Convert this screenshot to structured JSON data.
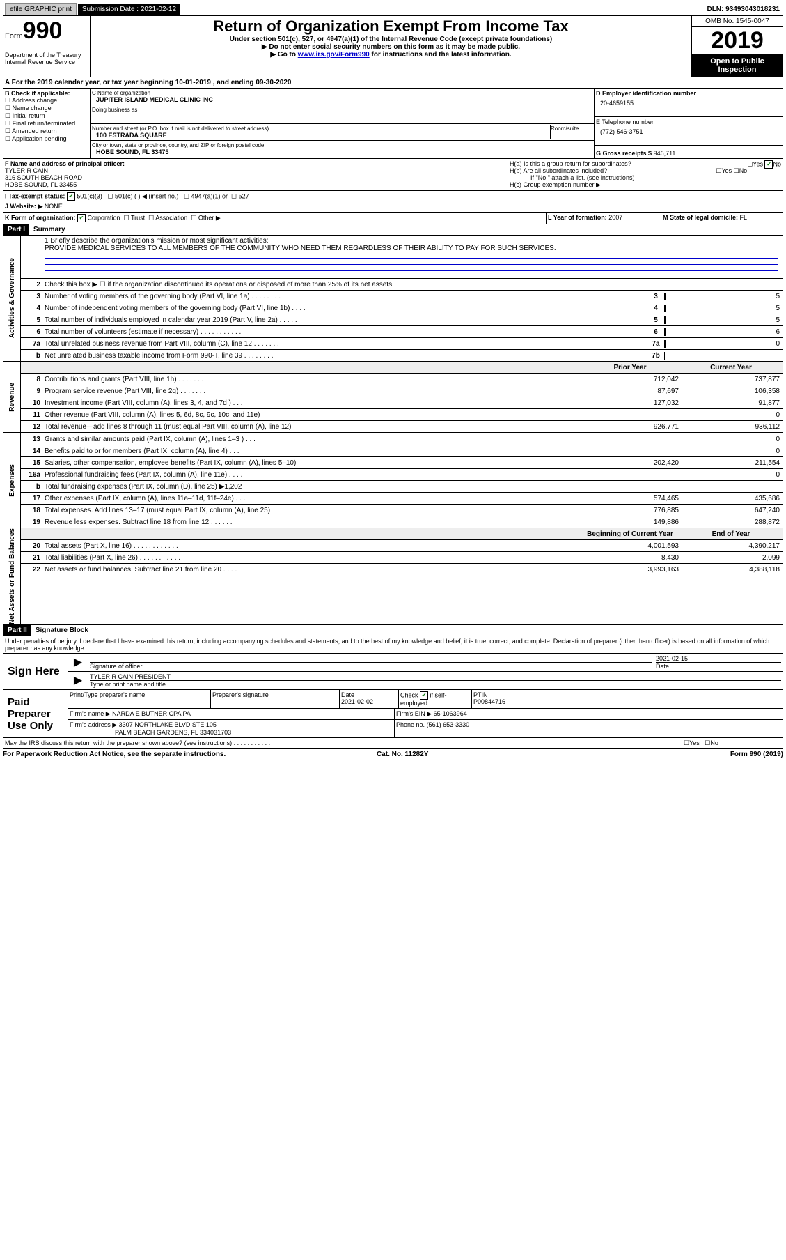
{
  "header": {
    "efile": "efile GRAPHIC print",
    "submission_label": "Submission Date : 2021-02-12",
    "dln": "DLN: 93493043018231"
  },
  "form_head": {
    "form_label": "Form",
    "form_number": "990",
    "title": "Return of Organization Exempt From Income Tax",
    "sub1": "Under section 501(c), 527, or 4947(a)(1) of the Internal Revenue Code (except private foundations)",
    "sub2": "▶ Do not enter social security numbers on this form as it may be made public.",
    "sub3_pre": "▶ Go to ",
    "sub3_link": "www.irs.gov/Form990",
    "sub3_post": " for instructions and the latest information.",
    "omb": "OMB No. 1545-0047",
    "year": "2019",
    "open": "Open to Public Inspection",
    "dept": "Department of the Treasury\nInternal Revenue Service"
  },
  "row_a": "A For the 2019 calendar year, or tax year beginning 10-01-2019    , and ending 09-30-2020",
  "box_b": {
    "label": "B Check if applicable:",
    "items": [
      "Address change",
      "Name change",
      "Initial return",
      "Final return/terminated",
      "Amended return",
      "Application pending"
    ]
  },
  "box_c": {
    "name_label": "C Name of organization",
    "name": "JUPITER ISLAND MEDICAL CLINIC INC",
    "dba_label": "Doing business as",
    "addr_label": "Number and street (or P.O. box if mail is not delivered to street address)",
    "addr": "100 ESTRADA SQUARE",
    "room_label": "Room/suite",
    "city_label": "City or town, state or province, country, and ZIP or foreign postal code",
    "city": "HOBE SOUND, FL  33475"
  },
  "box_d": {
    "label": "D Employer identification number",
    "val": "20-4659155"
  },
  "box_e": {
    "label": "E Telephone number",
    "val": "(772) 546-3751"
  },
  "box_g": {
    "label": "G Gross receipts $",
    "val": "946,711"
  },
  "box_f": {
    "label": "F  Name and address of principal officer:",
    "name": "TYLER R CAIN",
    "addr1": "316 SOUTH BEACH ROAD",
    "addr2": "HOBE SOUND, FL  33455"
  },
  "box_h": {
    "a": "H(a)  Is this a group return for subordinates?",
    "a_yes": "Yes",
    "a_no": "No",
    "b": "H(b)  Are all subordinates included?",
    "b_yes": "Yes",
    "b_no": "No",
    "b_note": "If \"No,\" attach a list. (see instructions)",
    "c": "H(c)  Group exemption number ▶"
  },
  "box_i": {
    "label": "I  Tax-exempt status:",
    "opt1": "501(c)(3)",
    "opt2": "501(c) (  ) ◀ (insert no.)",
    "opt3": "4947(a)(1) or",
    "opt4": "527"
  },
  "box_j": {
    "label": "J  Website: ▶",
    "val": "NONE"
  },
  "box_k": {
    "label": "K Form of organization:",
    "opts": [
      "Corporation",
      "Trust",
      "Association",
      "Other ▶"
    ]
  },
  "box_l": {
    "label": "L Year of formation:",
    "val": "2007"
  },
  "box_m": {
    "label": "M State of legal domicile:",
    "val": "FL"
  },
  "part1": {
    "head": "Part I",
    "title": "Summary"
  },
  "mission": {
    "label": "1  Briefly describe the organization's mission or most significant activities:",
    "text": "PROVIDE MEDICAL SERVICES TO ALL MEMBERS OF THE COMMUNITY WHO NEED THEM REGARDLESS OF THEIR ABILITY TO PAY FOR SUCH SERVICES."
  },
  "line2": "Check this box ▶ ☐  if the organization discontinued its operations or disposed of more than 25% of its net assets.",
  "gov_lines": [
    {
      "n": "3",
      "d": "Number of voting members of the governing body (Part VI, line 1a)  .   .   .   .   .   .   .   .",
      "b": "3",
      "v": "5"
    },
    {
      "n": "4",
      "d": "Number of independent voting members of the governing body (Part VI, line 1b)   .   .   .   .",
      "b": "4",
      "v": "5"
    },
    {
      "n": "5",
      "d": "Total number of individuals employed in calendar year 2019 (Part V, line 2a)   .   .   .   .   .",
      "b": "5",
      "v": "5"
    },
    {
      "n": "6",
      "d": "Total number of volunteers (estimate if necessary)   .   .   .   .   .   .   .   .   .   .   .   .",
      "b": "6",
      "v": "6"
    },
    {
      "n": "7a",
      "d": "Total unrelated business revenue from Part VIII, column (C), line 12   .   .   .   .   .   .   .",
      "b": "7a",
      "v": "0"
    },
    {
      "n": "b",
      "d": "Net unrelated business taxable income from Form 990-T, line 39   .   .   .   .   .   .   .   .",
      "b": "7b",
      "v": ""
    }
  ],
  "col_heads": {
    "prior": "Prior Year",
    "current": "Current Year",
    "begin": "Beginning of Current Year",
    "end": "End of Year"
  },
  "revenue": [
    {
      "n": "8",
      "d": "Contributions and grants (Part VIII, line 1h)   .   .   .   .   .   .   .",
      "p": "712,042",
      "c": "737,877"
    },
    {
      "n": "9",
      "d": "Program service revenue (Part VIII, line 2g)   .   .   .   .   .   .   .",
      "p": "87,697",
      "c": "106,358"
    },
    {
      "n": "10",
      "d": "Investment income (Part VIII, column (A), lines 3, 4, and 7d )   .   .   .",
      "p": "127,032",
      "c": "91,877"
    },
    {
      "n": "11",
      "d": "Other revenue (Part VIII, column (A), lines 5, 6d, 8c, 9c, 10c, and 11e)",
      "p": "",
      "c": "0"
    },
    {
      "n": "12",
      "d": "Total revenue—add lines 8 through 11 (must equal Part VIII, column (A), line 12)",
      "p": "926,771",
      "c": "936,112"
    }
  ],
  "expenses": [
    {
      "n": "13",
      "d": "Grants and similar amounts paid (Part IX, column (A), lines 1–3 )   .   .   .",
      "p": "",
      "c": "0"
    },
    {
      "n": "14",
      "d": "Benefits paid to or for members (Part IX, column (A), line 4)   .   .   .",
      "p": "",
      "c": "0"
    },
    {
      "n": "15",
      "d": "Salaries, other compensation, employee benefits (Part IX, column (A), lines 5–10)",
      "p": "202,420",
      "c": "211,554"
    },
    {
      "n": "16a",
      "d": "Professional fundraising fees (Part IX, column (A), line 11e)   .   .   .   .",
      "p": "",
      "c": "0"
    },
    {
      "n": "b",
      "d": "Total fundraising expenses (Part IX, column (D), line 25) ▶1,202",
      "p": "shade",
      "c": "shade"
    },
    {
      "n": "17",
      "d": "Other expenses (Part IX, column (A), lines 11a–11d, 11f–24e)   .   .   .",
      "p": "574,465",
      "c": "435,686"
    },
    {
      "n": "18",
      "d": "Total expenses. Add lines 13–17 (must equal Part IX, column (A), line 25)",
      "p": "776,885",
      "c": "647,240"
    },
    {
      "n": "19",
      "d": "Revenue less expenses. Subtract line 18 from line 12   .   .   .   .   .   .",
      "p": "149,886",
      "c": "288,872"
    }
  ],
  "netassets": [
    {
      "n": "20",
      "d": "Total assets (Part X, line 16)   .   .   .   .   .   .   .   .   .   .   .   .",
      "p": "4,001,593",
      "c": "4,390,217"
    },
    {
      "n": "21",
      "d": "Total liabilities (Part X, line 26)   .   .   .   .   .   .   .   .   .   .   .",
      "p": "8,430",
      "c": "2,099"
    },
    {
      "n": "22",
      "d": "Net assets or fund balances. Subtract line 21 from line 20   .   .   .   .",
      "p": "3,993,163",
      "c": "4,388,118"
    }
  ],
  "side_labels": {
    "gov": "Activities & Governance",
    "rev": "Revenue",
    "exp": "Expenses",
    "net": "Net Assets or Fund Balances"
  },
  "part2": {
    "head": "Part II",
    "title": "Signature Block"
  },
  "sig_decl": "Under penalties of perjury, I declare that I have examined this return, including accompanying schedules and statements, and to the best of my knowledge and belief, it is true, correct, and complete. Declaration of preparer (other than officer) is based on all information of which preparer has any knowledge.",
  "sign_here": {
    "label": "Sign Here",
    "sig_of_officer": "Signature of officer",
    "date": "2021-02-15",
    "date_label": "Date",
    "name": "TYLER R CAIN  PRESIDENT",
    "name_label": "Type or print name and title"
  },
  "paid_prep": {
    "label": "Paid Preparer Use Only",
    "h1": "Print/Type preparer's name",
    "h2": "Preparer's signature",
    "h3_label": "Date",
    "h3": "2021-02-02",
    "h4_label": "Check",
    "h4_text": "if self-employed",
    "h5_label": "PTIN",
    "h5": "P00844716",
    "firm_label": "Firm's name    ▶",
    "firm": "NARDA E BUTNER CPA PA",
    "ein_label": "Firm's EIN ▶",
    "ein": "65-1063964",
    "addr_label": "Firm's address ▶",
    "addr1": "3307 NORTHLAKE BLVD STE 105",
    "addr2": "PALM BEACH GARDENS, FL  334031703",
    "phone_label": "Phone no.",
    "phone": "(561) 653-3330"
  },
  "discuss": "May the IRS discuss this return with the preparer shown above? (see instructions)   .   .   .   .   .   .   .   .   .   .   .",
  "discuss_yes": "Yes",
  "discuss_no": "No",
  "footer": {
    "left": "For Paperwork Reduction Act Notice, see the separate instructions.",
    "mid": "Cat. No. 11282Y",
    "right": "Form 990 (2019)"
  }
}
